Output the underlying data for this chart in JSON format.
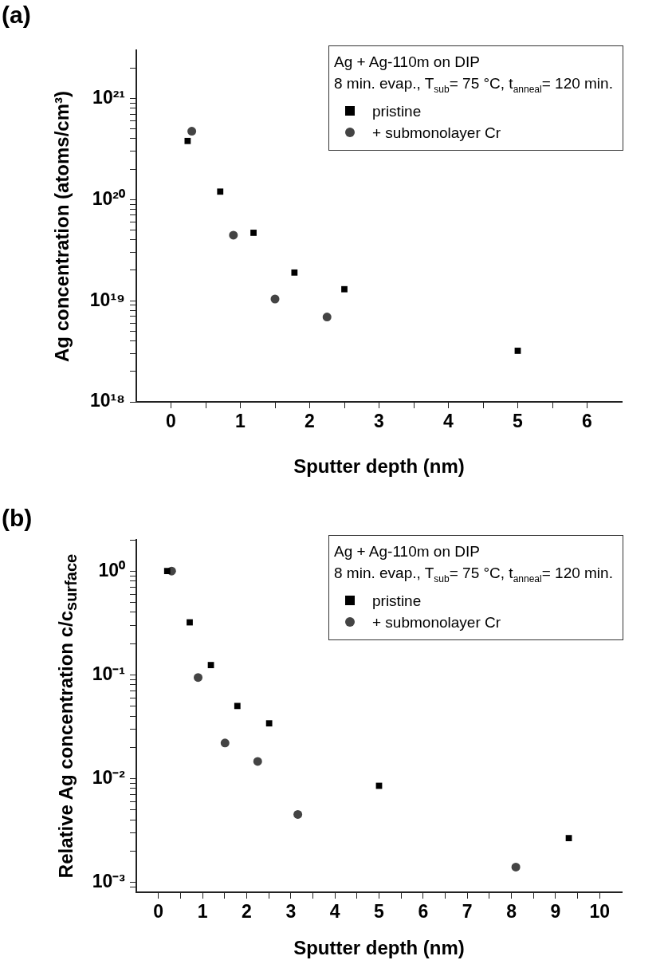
{
  "chart_data": [
    {
      "type": "scatter",
      "title": "(a)",
      "xlabel": "Sputter depth (nm)",
      "ylabel": "Ag concentration (atoms/cm³)",
      "legend_title": "Ag + Ag-110m on DIP\n8 min. evap., T$_{sub}$= 75 °C, t$_{anneal}$= 120 min.",
      "legend": "top right",
      "log": "y",
      "grid": false,
      "xlim": [
        -0.5,
        6.5
      ],
      "xticks": [
        0,
        {
          "value": 0.5,
          "label": null
        },
        1,
        {
          "value": 1.5,
          "label": null
        },
        2,
        {
          "value": 2.5,
          "label": null
        },
        3,
        {
          "value": 3.5,
          "label": null
        },
        4,
        {
          "value": 4.5,
          "label": null
        },
        5,
        {
          "value": 5.5,
          "label": null
        },
        6
      ],
      "ylim": [
        1e+18,
        3e+21
      ],
      "yticks": [
        {
          "value": 1e+18,
          "label": "10¹⁸"
        },
        {
          "value": 2e+18,
          "label": null
        },
        {
          "value": 3e+18,
          "label": null
        },
        {
          "value": 4e+18,
          "label": null
        },
        {
          "value": 5e+18,
          "label": null
        },
        {
          "value": 6e+18,
          "label": null
        },
        {
          "value": 7e+18,
          "label": null
        },
        {
          "value": 8e+18,
          "label": null
        },
        {
          "value": 9e+18,
          "label": null
        },
        {
          "value": 1e+19,
          "label": "10¹⁹"
        },
        {
          "value": 2e+19,
          "label": null
        },
        {
          "value": 3e+19,
          "label": null
        },
        {
          "value": 4e+19,
          "label": null
        },
        {
          "value": 5e+19,
          "label": null
        },
        {
          "value": 6e+19,
          "label": null
        },
        {
          "value": 7e+19,
          "label": null
        },
        {
          "value": 8e+19,
          "label": null
        },
        {
          "value": 9e+19,
          "label": null
        },
        {
          "value": 1e+20,
          "label": "10²⁰"
        },
        {
          "value": 2e+20,
          "label": null
        },
        {
          "value": 3e+20,
          "label": null
        },
        {
          "value": 4e+20,
          "label": null
        },
        {
          "value": 5e+20,
          "label": null
        },
        {
          "value": 6e+20,
          "label": null
        },
        {
          "value": 7e+20,
          "label": null
        },
        {
          "value": 8e+20,
          "label": null
        },
        {
          "value": 9e+20,
          "label": null
        },
        {
          "value": 1e+21,
          "label": "10²¹"
        },
        {
          "value": 2e+21,
          "label": null
        }
      ],
      "series": [
        {
          "name": "pristine",
          "color": "#000000",
          "marker": "square",
          "x": [
            0.24,
            0.71,
            1.19,
            1.78,
            2.5,
            5.0
          ],
          "values": [
            3.8e+20,
            1.2e+20,
            4.7e+19,
            1.9e+19,
            1.3e+19,
            3.2e+18
          ]
        },
        {
          "name": "+ submonolayer Cr",
          "color": "#444444",
          "marker": "circle",
          "x": [
            0.3,
            0.9,
            1.5,
            2.25
          ],
          "values": [
            4.75e+20,
            4.45e+19,
            1.04e+19,
            6.9e+18
          ]
        }
      ]
    },
    {
      "type": "scatter",
      "title": "(b)",
      "xlabel": "Sputter depth (nm)",
      "ylabel": "Relative Ag concentration c/c$_{surface}$",
      "legend_title": "Ag + Ag-110m on DIP\n8 min. evap., T$_{sub}$= 75 °C, t$_{anneal}$= 120 min.",
      "legend": "top right",
      "log": "y",
      "grid": false,
      "xlim": [
        -0.5,
        10.5
      ],
      "xticks": [
        0,
        {
          "value": 0.5,
          "label": null
        },
        1,
        {
          "value": 1.5,
          "label": null
        },
        2,
        {
          "value": 2.5,
          "label": null
        },
        3,
        {
          "value": 3.5,
          "label": null
        },
        4,
        {
          "value": 4.5,
          "label": null
        },
        5,
        {
          "value": 5.5,
          "label": null
        },
        6,
        {
          "value": 6.5,
          "label": null
        },
        7,
        {
          "value": 7.5,
          "label": null
        },
        8,
        {
          "value": 8.5,
          "label": null
        },
        9,
        {
          "value": 9.5,
          "label": null
        },
        10
      ],
      "ylim": [
        0.0008,
        2
      ],
      "yticks": [
        {
          "value": 0.0009,
          "label": null
        },
        {
          "value": 0.001,
          "label": "10⁻³"
        },
        {
          "value": 0.002,
          "label": null
        },
        {
          "value": 0.003,
          "label": null
        },
        {
          "value": 0.004,
          "label": null
        },
        {
          "value": 0.005,
          "label": null
        },
        {
          "value": 0.006,
          "label": null
        },
        {
          "value": 0.007,
          "label": null
        },
        {
          "value": 0.008,
          "label": null
        },
        {
          "value": 0.009,
          "label": null
        },
        {
          "value": 0.01,
          "label": "10⁻²"
        },
        {
          "value": 0.02,
          "label": null
        },
        {
          "value": 0.03,
          "label": null
        },
        {
          "value": 0.04,
          "label": null
        },
        {
          "value": 0.05,
          "label": null
        },
        {
          "value": 0.06,
          "label": null
        },
        {
          "value": 0.07,
          "label": null
        },
        {
          "value": 0.08,
          "label": null
        },
        {
          "value": 0.09,
          "label": null
        },
        {
          "value": 0.1,
          "label": "10⁻¹"
        },
        {
          "value": 0.2,
          "label": null
        },
        {
          "value": 0.3,
          "label": null
        },
        {
          "value": 0.4,
          "label": null
        },
        {
          "value": 0.5,
          "label": null
        },
        {
          "value": 0.6,
          "label": null
        },
        {
          "value": 0.7,
          "label": null
        },
        {
          "value": 0.8,
          "label": null
        },
        {
          "value": 0.9,
          "label": null
        },
        {
          "value": 1,
          "label": "10⁰"
        },
        {
          "value": 2,
          "label": null
        }
      ],
      "series": [
        {
          "name": "pristine",
          "color": "#000000",
          "marker": "square",
          "x": [
            0.2,
            0.71,
            1.19,
            1.79,
            2.51,
            5.0,
            9.3
          ],
          "values": [
            1,
            0.32,
            0.124,
            0.05,
            0.034,
            0.0085,
            0.00266
          ]
        },
        {
          "name": "+ submonolayer Cr",
          "color": "#444444",
          "marker": "circle",
          "x": [
            0.3,
            0.9,
            1.51,
            2.25,
            3.16,
            8.1
          ],
          "values": [
            1,
            0.094,
            0.022,
            0.0146,
            0.0045,
            0.0014
          ]
        }
      ]
    }
  ]
}
